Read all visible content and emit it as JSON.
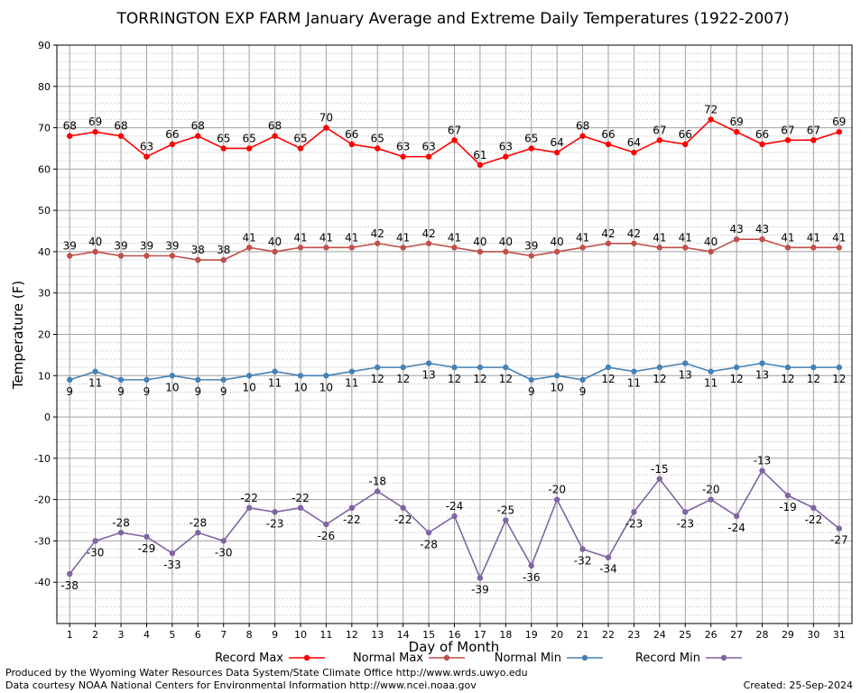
{
  "chart_data": {
    "type": "line",
    "title": "TORRINGTON EXP FARM January Average and Extreme Daily Temperatures (1922-2007)",
    "xlabel": "Day of Month",
    "ylabel": "Temperature (F)",
    "ylim": [
      -50,
      90
    ],
    "yticks": [
      -40,
      -30,
      -20,
      -10,
      0,
      10,
      20,
      30,
      40,
      50,
      60,
      70,
      80,
      90
    ],
    "grid": true,
    "legend_position": "bottom",
    "x": [
      1,
      2,
      3,
      4,
      5,
      6,
      7,
      8,
      9,
      10,
      11,
      12,
      13,
      14,
      15,
      16,
      17,
      18,
      19,
      20,
      21,
      22,
      23,
      24,
      25,
      26,
      27,
      28,
      29,
      30,
      31
    ],
    "series": [
      {
        "name": "Record Max",
        "color": "#ff0000",
        "label_position": "above",
        "values": [
          68,
          69,
          68,
          63,
          66,
          68,
          65,
          65,
          68,
          65,
          70,
          66,
          65,
          63,
          63,
          67,
          61,
          63,
          65,
          64,
          68,
          66,
          64,
          67,
          66,
          72,
          69,
          66,
          67,
          67,
          69
        ]
      },
      {
        "name": "Normal Max",
        "color": "#c0504d",
        "label_position": "above",
        "values": [
          39,
          40,
          39,
          39,
          39,
          38,
          38,
          41,
          40,
          41,
          41,
          41,
          42,
          41,
          42,
          41,
          40,
          40,
          39,
          40,
          41,
          42,
          42,
          41,
          41,
          40,
          43,
          43,
          41,
          41,
          41
        ]
      },
      {
        "name": "Normal Min",
        "color": "#4682b4",
        "label_position": "below",
        "values": [
          9,
          11,
          9,
          9,
          10,
          9,
          9,
          10,
          11,
          10,
          10,
          11,
          12,
          12,
          13,
          12,
          12,
          12,
          9,
          10,
          9,
          12,
          11,
          12,
          13,
          11,
          12,
          13,
          12,
          12,
          12
        ]
      },
      {
        "name": "Record Min",
        "color": "#8064a2",
        "label_position": "alternate",
        "values": [
          -38,
          -30,
          -28,
          -29,
          -33,
          -28,
          -30,
          -22,
          -23,
          -22,
          -26,
          -22,
          -18,
          -22,
          -28,
          -24,
          -39,
          -25,
          -36,
          -20,
          -32,
          -34,
          -23,
          -15,
          -23,
          -20,
          -24,
          -13,
          -19,
          -22,
          -27
        ]
      }
    ]
  },
  "footer": {
    "credit_line_1": "Produced by the Wyoming Water Resources Data System/State Climate Office http://www.wrds.uwyo.edu",
    "credit_line_2": "Data courtesy NOAA National Centers for Environmental Information http://www.ncei.noaa.gov",
    "created": "Created:  25-Sep-2024"
  }
}
